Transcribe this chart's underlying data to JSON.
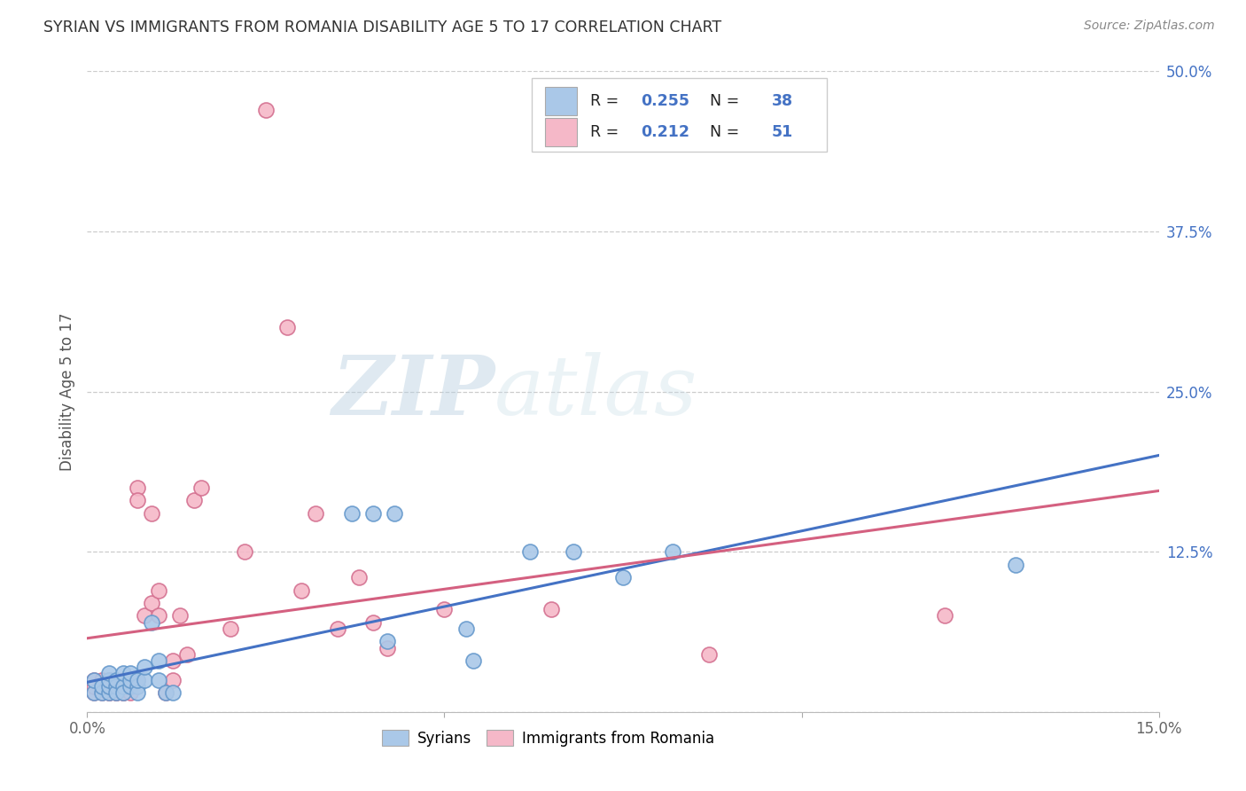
{
  "title": "SYRIAN VS IMMIGRANTS FROM ROMANIA DISABILITY AGE 5 TO 17 CORRELATION CHART",
  "source": "Source: ZipAtlas.com",
  "ylabel": "Disability Age 5 to 17",
  "xlim": [
    0.0,
    0.15
  ],
  "ylim": [
    0.0,
    0.5
  ],
  "xticks": [
    0.0,
    0.05,
    0.1,
    0.15
  ],
  "xtick_labels": [
    "0.0%",
    "",
    "",
    "15.0%"
  ],
  "yticks": [
    0.0,
    0.125,
    0.25,
    0.375,
    0.5
  ],
  "ytick_labels": [
    "",
    "12.5%",
    "25.0%",
    "37.5%",
    "50.0%"
  ],
  "legend_r_syrians": "0.255",
  "legend_n_syrians": "38",
  "legend_r_romania": "0.212",
  "legend_n_romania": "51",
  "color_syrians_fill": "#aac8e8",
  "color_syrians_edge": "#6699cc",
  "color_romania_fill": "#f5b8c8",
  "color_romania_edge": "#d47090",
  "line_color_syrians": "#4472c4",
  "line_color_romania": "#d46080",
  "grid_color": "#cccccc",
  "watermark_color": "#ccdded",
  "syrians_x": [
    0.001,
    0.001,
    0.002,
    0.002,
    0.003,
    0.003,
    0.003,
    0.003,
    0.004,
    0.004,
    0.004,
    0.005,
    0.005,
    0.005,
    0.006,
    0.006,
    0.006,
    0.007,
    0.007,
    0.007,
    0.008,
    0.008,
    0.009,
    0.01,
    0.01,
    0.011,
    0.012,
    0.037,
    0.04,
    0.042,
    0.043,
    0.053,
    0.054,
    0.062,
    0.068,
    0.075,
    0.082,
    0.13
  ],
  "syrians_y": [
    0.015,
    0.025,
    0.015,
    0.02,
    0.015,
    0.02,
    0.025,
    0.03,
    0.02,
    0.015,
    0.025,
    0.02,
    0.015,
    0.03,
    0.02,
    0.025,
    0.03,
    0.02,
    0.015,
    0.025,
    0.025,
    0.035,
    0.07,
    0.025,
    0.04,
    0.015,
    0.015,
    0.155,
    0.155,
    0.055,
    0.155,
    0.065,
    0.04,
    0.125,
    0.125,
    0.105,
    0.125,
    0.115
  ],
  "romania_x": [
    0.001,
    0.001,
    0.001,
    0.002,
    0.002,
    0.002,
    0.003,
    0.003,
    0.003,
    0.003,
    0.003,
    0.004,
    0.004,
    0.004,
    0.004,
    0.005,
    0.005,
    0.005,
    0.005,
    0.006,
    0.006,
    0.006,
    0.007,
    0.007,
    0.007,
    0.008,
    0.009,
    0.009,
    0.01,
    0.01,
    0.011,
    0.012,
    0.012,
    0.013,
    0.014,
    0.015,
    0.016,
    0.02,
    0.022,
    0.025,
    0.028,
    0.03,
    0.032,
    0.035,
    0.038,
    0.04,
    0.042,
    0.05,
    0.065,
    0.087,
    0.12
  ],
  "romania_y": [
    0.015,
    0.02,
    0.025,
    0.015,
    0.02,
    0.025,
    0.015,
    0.02,
    0.025,
    0.015,
    0.025,
    0.015,
    0.02,
    0.025,
    0.015,
    0.02,
    0.015,
    0.025,
    0.015,
    0.02,
    0.025,
    0.015,
    0.175,
    0.165,
    0.025,
    0.075,
    0.155,
    0.085,
    0.095,
    0.075,
    0.015,
    0.04,
    0.025,
    0.075,
    0.045,
    0.165,
    0.175,
    0.065,
    0.125,
    0.47,
    0.3,
    0.095,
    0.155,
    0.065,
    0.105,
    0.07,
    0.05,
    0.08,
    0.08,
    0.045,
    0.075
  ]
}
